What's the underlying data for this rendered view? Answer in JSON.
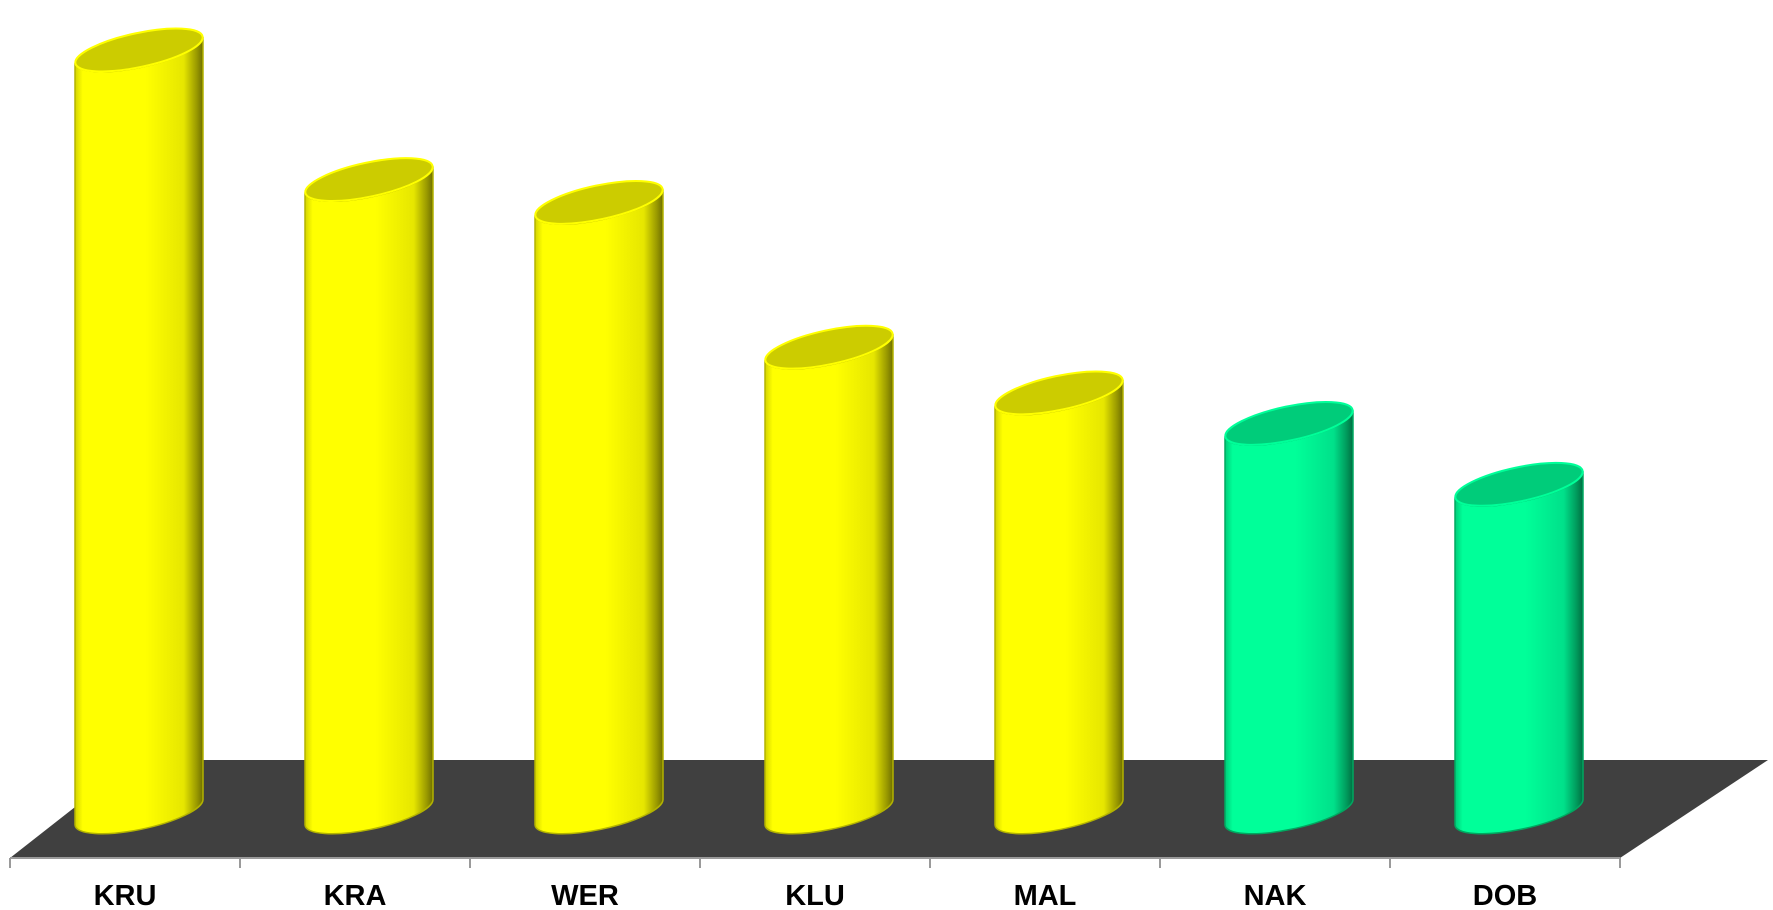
{
  "chart_data": {
    "type": "bar",
    "bar_shape": "cylinder-3d",
    "categories": [
      "KRU",
      "KRA",
      "WER",
      "KLU",
      "MAL",
      "NAK",
      "DOB"
    ],
    "values": [
      100,
      83,
      80,
      61,
      55,
      51,
      43
    ],
    "value_units": "relative (no axis printed)",
    "ylim": [
      0,
      100
    ],
    "grid": false,
    "legend": "none",
    "title": "",
    "xlabel": "",
    "ylabel": "",
    "series": [
      {
        "values": [
          100,
          83,
          80,
          61,
          55,
          51,
          43
        ]
      }
    ],
    "bar_colors": [
      "#ffff00",
      "#ffff00",
      "#ffff00",
      "#ffff00",
      "#ffff00",
      "#00ff99",
      "#00ff99"
    ],
    "floor_color": "#404040"
  }
}
